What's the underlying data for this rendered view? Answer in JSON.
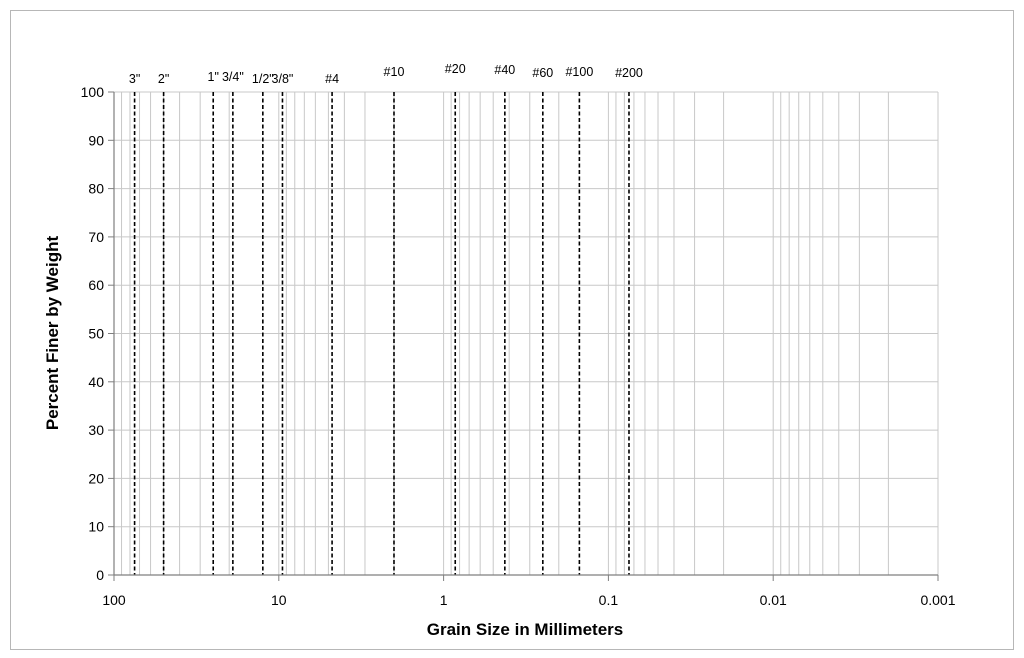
{
  "chart_data": {
    "type": "scatter",
    "title": "",
    "xlabel": "Grain Size in Millimeters",
    "ylabel": "Percent Finer by Weight",
    "x_scale": "log",
    "x_reversed": true,
    "xlim": [
      100,
      0.001
    ],
    "ylim": [
      0,
      100
    ],
    "x_ticks": [
      {
        "value": 100,
        "label": "100"
      },
      {
        "value": 10,
        "label": "10"
      },
      {
        "value": 1,
        "label": "1"
      },
      {
        "value": 0.1,
        "label": "0.1"
      },
      {
        "value": 0.01,
        "label": "0.01"
      },
      {
        "value": 0.001,
        "label": "0.001"
      }
    ],
    "y_ticks": [
      0,
      10,
      20,
      30,
      40,
      50,
      60,
      70,
      80,
      90,
      100
    ],
    "grid": true,
    "series": [],
    "sieves": [
      {
        "label": "3\"",
        "size_mm": 75
      },
      {
        "label": "2\"",
        "size_mm": 50
      },
      {
        "label": "1\"",
        "size_mm": 25
      },
      {
        "label": "3/4\"",
        "size_mm": 19
      },
      {
        "label": "1/2\"",
        "size_mm": 12.5
      },
      {
        "label": "3/8\"",
        "size_mm": 9.5
      },
      {
        "label": "#4",
        "size_mm": 4.75
      },
      {
        "label": "#10",
        "size_mm": 2.0
      },
      {
        "label": "#20",
        "size_mm": 0.85
      },
      {
        "label": "#40",
        "size_mm": 0.425
      },
      {
        "label": "#60",
        "size_mm": 0.25
      },
      {
        "label": "#100",
        "size_mm": 0.15
      },
      {
        "label": "#200",
        "size_mm": 0.075
      }
    ],
    "colors": {
      "grid": "#c8c8c8",
      "axis": "#7f7f7f",
      "sieve_line": "#000000"
    }
  }
}
